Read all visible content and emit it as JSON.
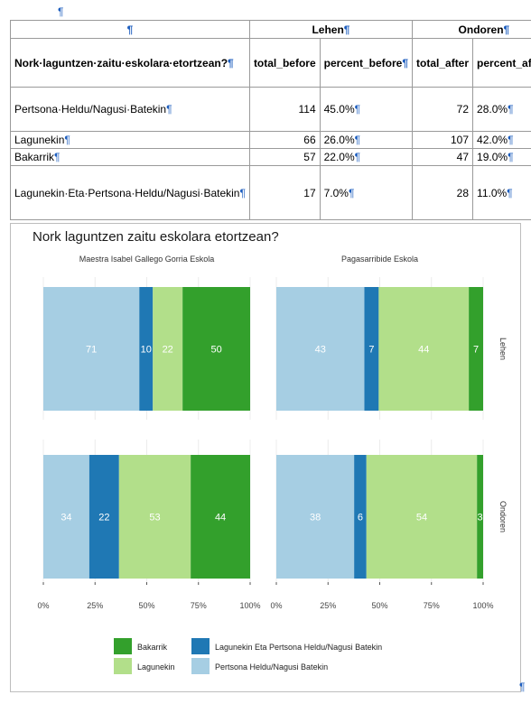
{
  "pilcrow": "¶",
  "table": {
    "group_headers": [
      "",
      "Lehen",
      "Ondoren"
    ],
    "columns": [
      "Nork·laguntzen·zaitu·eskolara·etortzean?",
      "total_before",
      "percent_before",
      "total_after",
      "percent_after"
    ],
    "rows": [
      {
        "label": "Pertsona·Heldu/Nagusi·Batekin",
        "total_before": "114",
        "percent_before": "45.0%",
        "total_after": "72",
        "percent_after": "28.0%"
      },
      {
        "label": "Lagunekin",
        "total_before": "66",
        "percent_before": "26.0%",
        "total_after": "107",
        "percent_after": "42.0%"
      },
      {
        "label": "Bakarrik",
        "total_before": "57",
        "percent_before": "22.0%",
        "total_after": "47",
        "percent_after": "19.0%"
      },
      {
        "label": "Lagunekin·Eta·Pertsona·Heldu/Nagusi·Batekin",
        "total_before": "17",
        "percent_before": "7.0%",
        "total_after": "28",
        "percent_after": "11.0%"
      }
    ]
  },
  "chart_data": {
    "type": "bar",
    "orientation": "horizontal-stacked-percent",
    "title": "Nork laguntzen zaitu eskolara etortzean?",
    "facets_columns": [
      "Maestra Isabel Gallego Gorria Eskola",
      "Pagasarribide Eskola"
    ],
    "facets_rows": [
      "Lehen",
      "Ondoren"
    ],
    "categories": [
      "Pertsona Heldu/Nagusi Batekin",
      "Lagunekin Eta Pertsona Heldu/Nagusi Batekin",
      "Lagunekin",
      "Bakarrik"
    ],
    "colors": {
      "Pertsona Heldu/Nagusi Batekin": "#a6cee3",
      "Lagunekin Eta Pertsona Heldu/Nagusi Batekin": "#1f78b4",
      "Lagunekin": "#b2df8a",
      "Bakarrik": "#33a02c"
    },
    "panels": [
      {
        "school": "Maestra Isabel Gallego Gorria Eskola",
        "period": "Lehen",
        "values": [
          71,
          10,
          22,
          50
        ]
      },
      {
        "school": "Pagasarribide Eskola",
        "period": "Lehen",
        "values": [
          43,
          7,
          44,
          7
        ]
      },
      {
        "school": "Maestra Isabel Gallego Gorria Eskola",
        "period": "Ondoren",
        "values": [
          34,
          22,
          53,
          44
        ]
      },
      {
        "school": "Pagasarribide Eskola",
        "period": "Ondoren",
        "values": [
          38,
          6,
          54,
          3
        ]
      }
    ],
    "x_ticks": [
      "0%",
      "25%",
      "50%",
      "75%",
      "100%"
    ],
    "xlim": [
      0,
      1
    ],
    "legend_position": "bottom",
    "legend": [
      {
        "label": "Bakarrik",
        "color": "#33a02c"
      },
      {
        "label": "Lagunekin Eta Pertsona Heldu/Nagusi Batekin",
        "color": "#1f78b4"
      },
      {
        "label": "Lagunekin",
        "color": "#b2df8a"
      },
      {
        "label": "Pertsona Heldu/Nagusi Batekin",
        "color": "#a6cee3"
      }
    ]
  }
}
